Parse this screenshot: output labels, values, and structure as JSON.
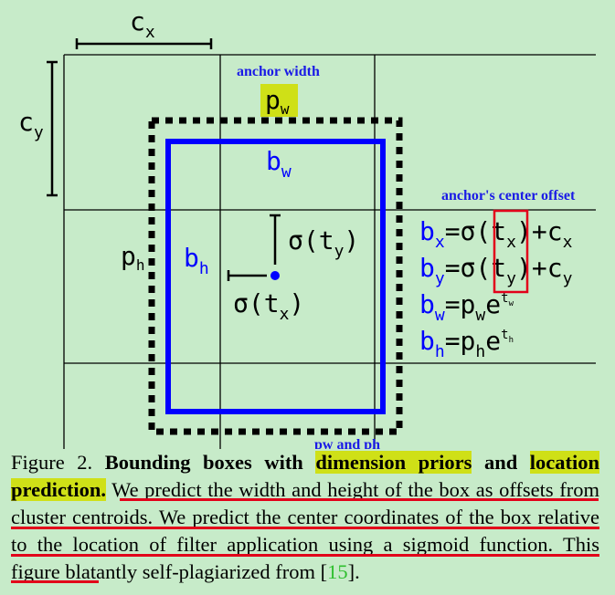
{
  "diagram": {
    "cx_label": "c",
    "cx_sub": "x",
    "cy_label": "c",
    "cy_sub": "y",
    "anchor_width_label": "anchor width",
    "pw_label": "p",
    "pw_sub": "w",
    "ph_label": "p",
    "ph_sub": "h",
    "bw_label": "b",
    "bw_sub": "w",
    "bh_label": "b",
    "bh_sub": "h",
    "sigma_ty_label": "σ(t",
    "sigma_ty_sub": "y",
    "sigma_ty_close": ")",
    "sigma_tx_label": "σ(t",
    "sigma_tx_sub": "x",
    "sigma_tx_close": ")",
    "anchor_center_offset_label": "anchor's center offset",
    "pw_and_ph_label": "pw and ph",
    "colors": {
      "background": "#c7ebc9",
      "box": "#0000ff",
      "annotation": "#1a1ae6",
      "highlight": "#cfe017",
      "red": "#e2001a"
    }
  },
  "equations": {
    "eq1": {
      "b": "b",
      "b_sub": "x",
      "mid": "=σ(",
      "t": "t",
      "t_sub": "x",
      "tail": ")+c",
      "tail_sub": "x"
    },
    "eq2": {
      "b": "b",
      "b_sub": "y",
      "mid": "=σ(",
      "t": "t",
      "t_sub": "y",
      "tail": ")+c",
      "tail_sub": "y"
    },
    "eq3": {
      "b": "b",
      "b_sub": "w",
      "mid": "=p",
      "mid_sub": "w",
      "e": "e",
      "sup": "t",
      "sup_sub": "w"
    },
    "eq4": {
      "b": "b",
      "b_sub": "h",
      "mid": "=p",
      "mid_sub": "h",
      "e": "e",
      "sup": "t",
      "sup_sub": "h"
    }
  },
  "caption": {
    "prefix": "Figure 2. ",
    "bold1": "Bounding boxes with ",
    "bold_hl1": "dimension priors",
    "bold2": " and ",
    "bold_hl2": "location prediction.",
    "text1": " We predict the width and height of the box as offsets from cluster centroids. We predict the center coordinates of the box relative to the location of filter application using a sigmoid function.",
    "text2": " This figure blatantly self-plagiarized from [",
    "ref": "15",
    "text3": "]."
  }
}
